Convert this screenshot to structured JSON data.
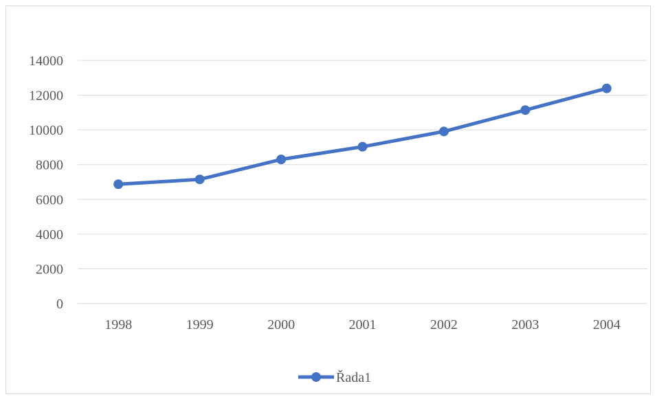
{
  "chart_data": {
    "type": "line",
    "title": "",
    "xlabel": "",
    "ylabel": "",
    "categories": [
      "1998",
      "1999",
      "2000",
      "2001",
      "2002",
      "2003",
      "2004"
    ],
    "series": [
      {
        "name": "Řada1",
        "color": "#4472c4",
        "values": [
          6870,
          7150,
          8300,
          9030,
          9910,
          11140,
          12390
        ]
      }
    ],
    "ylim": [
      0,
      14000
    ],
    "yticks": [
      "0",
      "2000",
      "4000",
      "6000",
      "8000",
      "10000",
      "12000",
      "14000"
    ],
    "grid": true,
    "legend": "bottom"
  }
}
